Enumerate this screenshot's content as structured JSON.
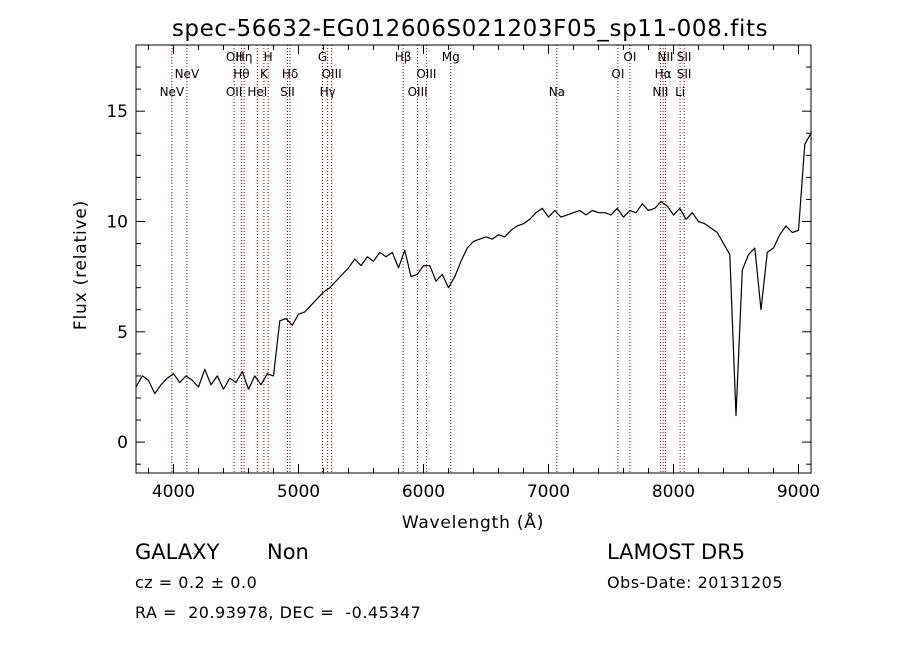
{
  "chart_data": {
    "type": "line",
    "title": "spec-56632-EG012606S021203F05_sp11-008.fits",
    "xlabel": "Wavelength (Å)",
    "ylabel": "Flux (relative)",
    "xlim": [
      3700,
      9100
    ],
    "ylim": [
      -1.4,
      18
    ],
    "x_ticks": [
      4000,
      5000,
      6000,
      7000,
      8000,
      9000
    ],
    "y_ticks": [
      0,
      5,
      10,
      15
    ],
    "grid": false,
    "line_color": "#000000",
    "marker_color": "#8b0000",
    "series": [
      {
        "x": [
          3700,
          3750,
          3800,
          3850,
          3900,
          3950,
          4000,
          4050,
          4100,
          4150,
          4200,
          4250,
          4300,
          4350,
          4400,
          4450,
          4500,
          4550,
          4600,
          4650,
          4700,
          4750,
          4800,
          4850,
          4900,
          4950,
          5000,
          5050,
          5100,
          5150,
          5200,
          5250,
          5300,
          5350,
          5400,
          5450,
          5500,
          5550,
          5600,
          5650,
          5700,
          5750,
          5800,
          5850,
          5900,
          5950,
          6000,
          6050,
          6100,
          6150,
          6200,
          6250,
          6300,
          6350,
          6400,
          6450,
          6500,
          6550,
          6600,
          6650,
          6700,
          6750,
          6800,
          6850,
          6900,
          6950,
          7000,
          7050,
          7100,
          7150,
          7200,
          7250,
          7300,
          7350,
          7400,
          7450,
          7500,
          7550,
          7600,
          7650,
          7700,
          7750,
          7800,
          7850,
          7900,
          7950,
          8000,
          8050,
          8100,
          8150,
          8200,
          8250,
          8300,
          8350,
          8400,
          8450,
          8500,
          8550,
          8600,
          8650,
          8700,
          8750,
          8800,
          8850,
          8900,
          8950,
          9000,
          9050,
          9100
        ],
        "y": [
          2.5,
          3.0,
          2.8,
          2.2,
          2.6,
          2.9,
          3.1,
          2.7,
          3.0,
          2.8,
          2.5,
          3.3,
          2.6,
          3.0,
          2.4,
          2.9,
          2.7,
          3.2,
          2.4,
          3.0,
          2.6,
          3.1,
          3.0,
          5.5,
          5.6,
          5.3,
          5.8,
          5.9,
          6.2,
          6.5,
          6.8,
          7.0,
          7.3,
          7.6,
          7.9,
          8.3,
          8.0,
          8.4,
          8.2,
          8.6,
          8.4,
          8.6,
          7.9,
          8.7,
          7.5,
          7.6,
          8.0,
          8.0,
          7.3,
          7.6,
          7.0,
          7.5,
          8.2,
          8.8,
          9.1,
          9.2,
          9.3,
          9.2,
          9.4,
          9.3,
          9.6,
          9.8,
          9.9,
          10.1,
          10.4,
          10.6,
          10.2,
          10.5,
          10.2,
          10.3,
          10.4,
          10.5,
          10.3,
          10.5,
          10.4,
          10.4,
          10.3,
          10.6,
          10.2,
          10.5,
          10.4,
          10.8,
          10.5,
          10.6,
          10.9,
          10.7,
          10.3,
          10.6,
          10.1,
          10.4,
          10.0,
          9.9,
          9.7,
          9.5,
          9.0,
          8.5,
          1.2,
          7.8,
          8.5,
          8.8,
          6.0,
          8.6,
          8.8,
          9.4,
          9.8,
          9.5,
          9.6,
          13.5,
          14.0
        ]
      }
    ],
    "spectral_lines": [
      {
        "label": "NeV",
        "wavelength": 3987,
        "row": 3
      },
      {
        "label": "NeV",
        "wavelength": 4107,
        "row": 2
      },
      {
        "label": "OII",
        "wavelength": 4485,
        "row": 1
      },
      {
        "label": "OII",
        "wavelength": 4485,
        "row": 3
      },
      {
        "label": "Hη",
        "wavelength": 4565,
        "row": 1
      },
      {
        "label": "Hθ",
        "wavelength": 4543,
        "row": 2
      },
      {
        "label": "H",
        "wavelength": 4757,
        "row": 1
      },
      {
        "label": "K",
        "wavelength": 4723,
        "row": 2
      },
      {
        "label": "HeI",
        "wavelength": 4671,
        "row": 3
      },
      {
        "label": "Hδ",
        "wavelength": 4932,
        "row": 2
      },
      {
        "label": "SII",
        "wavelength": 4912,
        "row": 3
      },
      {
        "label": "G",
        "wavelength": 5192,
        "row": 1
      },
      {
        "label": "OIII",
        "wavelength": 5265,
        "row": 2
      },
      {
        "label": "Hγ",
        "wavelength": 5233,
        "row": 3
      },
      {
        "label": "Hβ",
        "wavelength": 5837,
        "row": 1
      },
      {
        "label": "OIII",
        "wavelength": 6023,
        "row": 2
      },
      {
        "label": "OIII",
        "wavelength": 5953,
        "row": 3
      },
      {
        "label": "Mg",
        "wavelength": 6218,
        "row": 1
      },
      {
        "label": "Na",
        "wavelength": 7067,
        "row": 3
      },
      {
        "label": "OI",
        "wavelength": 7651,
        "row": 1
      },
      {
        "label": "OI",
        "wavelength": 7555,
        "row": 2
      },
      {
        "label": "NII",
        "wavelength": 7935,
        "row": 1
      },
      {
        "label": "Hα",
        "wavelength": 7917,
        "row": 2
      },
      {
        "label": "NII",
        "wavelength": 7895,
        "row": 3
      },
      {
        "label": "SII",
        "wavelength": 8085,
        "row": 1
      },
      {
        "label": "SII",
        "wavelength": 8085,
        "row": 2
      },
      {
        "label": "Li",
        "wavelength": 8053,
        "row": 3
      }
    ]
  },
  "info": {
    "object_type": "GALAXY",
    "subclass": "Non",
    "survey": "LAMOST DR5",
    "redshift_text": "cz = 0.2 ± 0.0",
    "obs_date_text": "Obs-Date: 20131205",
    "coords_text": "RA =  20.93978, DEC =  -0.45347"
  }
}
